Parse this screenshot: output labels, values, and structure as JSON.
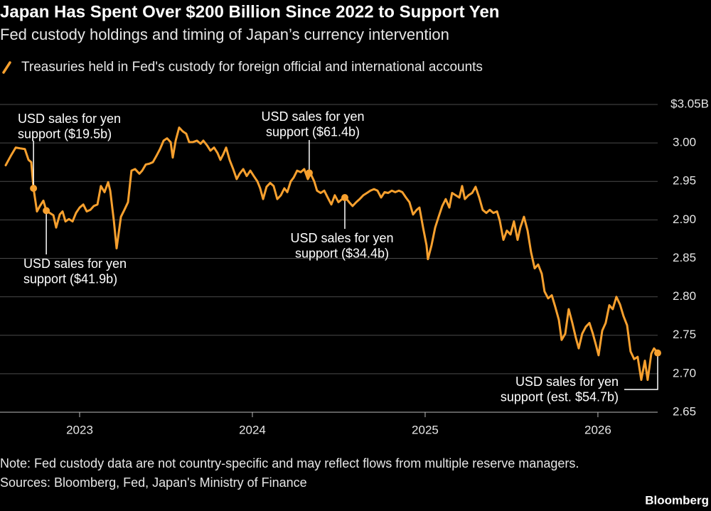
{
  "chart_data": {
    "type": "line",
    "title": "Japan Has Spent Over $200 Billion Since 2022 to Support Yen",
    "subtitle": "Fed custody holdings and timing of Japan’s currency intervention",
    "x": [
      2022.572,
      2022.601,
      2022.63,
      2022.654,
      2022.683,
      2022.704,
      2022.72,
      2022.733,
      2022.753,
      2022.77,
      2022.79,
      2022.807,
      2022.827,
      2022.848,
      2022.864,
      2022.885,
      2022.901,
      2022.918,
      2022.938,
      2022.959,
      2022.979,
      2023.0,
      2023.021,
      2023.041,
      2023.062,
      2023.082,
      2023.103,
      2023.123,
      2023.144,
      2023.165,
      2023.177,
      2023.198,
      2023.214,
      2023.239,
      2023.259,
      2023.28,
      2023.3,
      2023.321,
      2023.346,
      2023.362,
      2023.383,
      2023.403,
      2023.424,
      2023.444,
      2023.465,
      2023.486,
      2023.506,
      2023.527,
      2023.539,
      2023.556,
      2023.576,
      2023.597,
      2023.617,
      2023.634,
      2023.654,
      2023.679,
      2023.7,
      2023.716,
      2023.737,
      2023.757,
      2023.778,
      2023.798,
      2023.815,
      2023.831,
      2023.848,
      2023.868,
      2023.889,
      2023.909,
      2023.926,
      2023.947,
      2023.967,
      2023.988,
      2024.008,
      2024.029,
      2024.045,
      2024.062,
      2024.082,
      2024.103,
      2024.123,
      2024.144,
      2024.165,
      2024.185,
      2024.202,
      2024.222,
      2024.239,
      2024.259,
      2024.28,
      2024.3,
      2024.321,
      2024.337,
      2024.358,
      2024.374,
      2024.395,
      2024.416,
      2024.436,
      2024.457,
      2024.477,
      2024.498,
      2024.519,
      2024.539,
      2024.56,
      2024.58,
      2024.601,
      2024.621,
      2024.642,
      2024.663,
      2024.683,
      2024.704,
      2024.724,
      2024.745,
      2024.765,
      2024.786,
      2024.807,
      2024.827,
      2024.848,
      2024.868,
      2024.889,
      2024.909,
      2024.93,
      2024.951,
      2024.967,
      2024.988,
      2025.008,
      2025.016,
      2025.037,
      2025.058,
      2025.078,
      2025.099,
      2025.119,
      2025.14,
      2025.156,
      2025.177,
      2025.198,
      2025.214,
      2025.23,
      2025.251,
      2025.272,
      2025.292,
      2025.313,
      2025.333,
      2025.354,
      2025.374,
      2025.395,
      2025.416,
      2025.432,
      2025.453,
      2025.473,
      2025.494,
      2025.514,
      2025.535,
      2025.551,
      2025.572,
      2025.593,
      2025.613,
      2025.634,
      2025.654,
      2025.675,
      2025.691,
      2025.712,
      2025.733,
      2025.753,
      2025.774,
      2025.79,
      2025.811,
      2025.831,
      2025.852,
      2025.872,
      2025.889,
      2025.909,
      2025.93,
      2025.951,
      2025.971,
      2025.988,
      2026.004,
      2026.025,
      2026.045,
      2026.066,
      2026.086,
      2026.107,
      2026.128,
      2026.148,
      2026.169,
      2026.189,
      2026.21,
      2026.23,
      2026.251,
      2026.272,
      2026.288,
      2026.309,
      2026.325,
      2026.346
    ],
    "series": [
      {
        "name": "Treasuries held in Fed's custody for foreign official and international accounts",
        "color": "#f7a02e",
        "values": [
          2.971,
          2.983,
          2.994,
          2.993,
          2.992,
          2.978,
          2.975,
          2.941,
          2.911,
          2.918,
          2.925,
          2.912,
          2.909,
          2.906,
          2.89,
          2.907,
          2.911,
          2.898,
          2.901,
          2.898,
          2.909,
          2.916,
          2.92,
          2.911,
          2.913,
          2.918,
          2.92,
          2.944,
          2.936,
          2.949,
          2.938,
          2.899,
          2.863,
          2.904,
          2.913,
          2.923,
          2.964,
          2.966,
          2.96,
          2.964,
          2.972,
          2.973,
          2.975,
          2.983,
          2.992,
          3.003,
          3.006,
          3.001,
          2.981,
          3.003,
          3.02,
          3.015,
          3.012,
          3.001,
          3.001,
          3.003,
          2.999,
          3.003,
          2.997,
          2.99,
          2.994,
          2.987,
          2.978,
          2.985,
          2.994,
          2.978,
          2.966,
          2.953,
          2.96,
          2.966,
          2.957,
          2.964,
          2.957,
          2.95,
          2.941,
          2.927,
          2.943,
          2.948,
          2.944,
          2.927,
          2.932,
          2.941,
          2.936,
          2.95,
          2.955,
          2.964,
          2.962,
          2.966,
          2.953,
          2.96,
          2.95,
          2.938,
          2.935,
          2.938,
          2.929,
          2.92,
          2.932,
          2.923,
          2.927,
          2.929,
          2.923,
          2.918,
          2.923,
          2.927,
          2.932,
          2.935,
          2.938,
          2.94,
          2.938,
          2.929,
          2.936,
          2.935,
          2.938,
          2.936,
          2.938,
          2.936,
          2.929,
          2.923,
          2.907,
          2.913,
          2.916,
          2.89,
          2.867,
          2.849,
          2.867,
          2.89,
          2.904,
          2.918,
          2.927,
          2.916,
          2.935,
          2.932,
          2.929,
          2.944,
          2.927,
          2.932,
          2.935,
          2.943,
          2.929,
          2.913,
          2.909,
          2.913,
          2.909,
          2.911,
          2.899,
          2.874,
          2.886,
          2.881,
          2.898,
          2.874,
          2.89,
          2.904,
          2.886,
          2.858,
          2.837,
          2.842,
          2.83,
          2.807,
          2.798,
          2.802,
          2.787,
          2.77,
          2.744,
          2.752,
          2.784,
          2.766,
          2.747,
          2.733,
          2.752,
          2.761,
          2.766,
          2.752,
          2.738,
          2.724,
          2.756,
          2.766,
          2.789,
          2.784,
          2.8,
          2.79,
          2.775,
          2.763,
          2.729,
          2.719,
          2.722,
          2.692,
          2.717,
          2.692,
          2.726,
          2.733,
          2.727
        ]
      }
    ],
    "xlim": [
      2022.539,
      2026.346
    ],
    "xticks": [
      2023,
      2024,
      2025,
      2026
    ],
    "ylim": [
      2.65,
      3.05
    ],
    "yticks": [
      2.65,
      {
        "value": 2.7,
        "label": "2.70"
      },
      2.75,
      {
        "value": 2.8,
        "label": "2.80"
      },
      2.85,
      {
        "value": 2.9,
        "label": "2.90"
      },
      2.95,
      {
        "value": 3.0,
        "label": "3.00"
      },
      {
        "value": 3.05,
        "label": "$3.05B"
      }
    ],
    "grid": true,
    "annotations": [
      {
        "lines": [
          "USD sales for yen",
          "support ($19.5b)"
        ],
        "x": 2022.733,
        "y": 2.941
      },
      {
        "lines": [
          "USD sales for yen",
          "support ($41.9b)"
        ],
        "x": 2022.807,
        "y": 2.912
      },
      {
        "lines": [
          "USD sales for yen",
          "support ($61.4b)"
        ],
        "x": 2024.329,
        "y": 2.961
      },
      {
        "lines": [
          "USD sales for yen",
          "support ($34.4b)"
        ],
        "x": 2024.535,
        "y": 2.929
      },
      {
        "lines": [
          "USD sales for yen",
          "support (est. $54.7b)"
        ],
        "x": 2026.346,
        "y": 2.727
      }
    ],
    "note": "Note: Fed custody data are not country-specific and may reflect flows from multiple reserve managers.",
    "sources": "Sources: Bloomberg, Fed, Japan's Ministry of Finance",
    "credit": "Bloomberg"
  }
}
